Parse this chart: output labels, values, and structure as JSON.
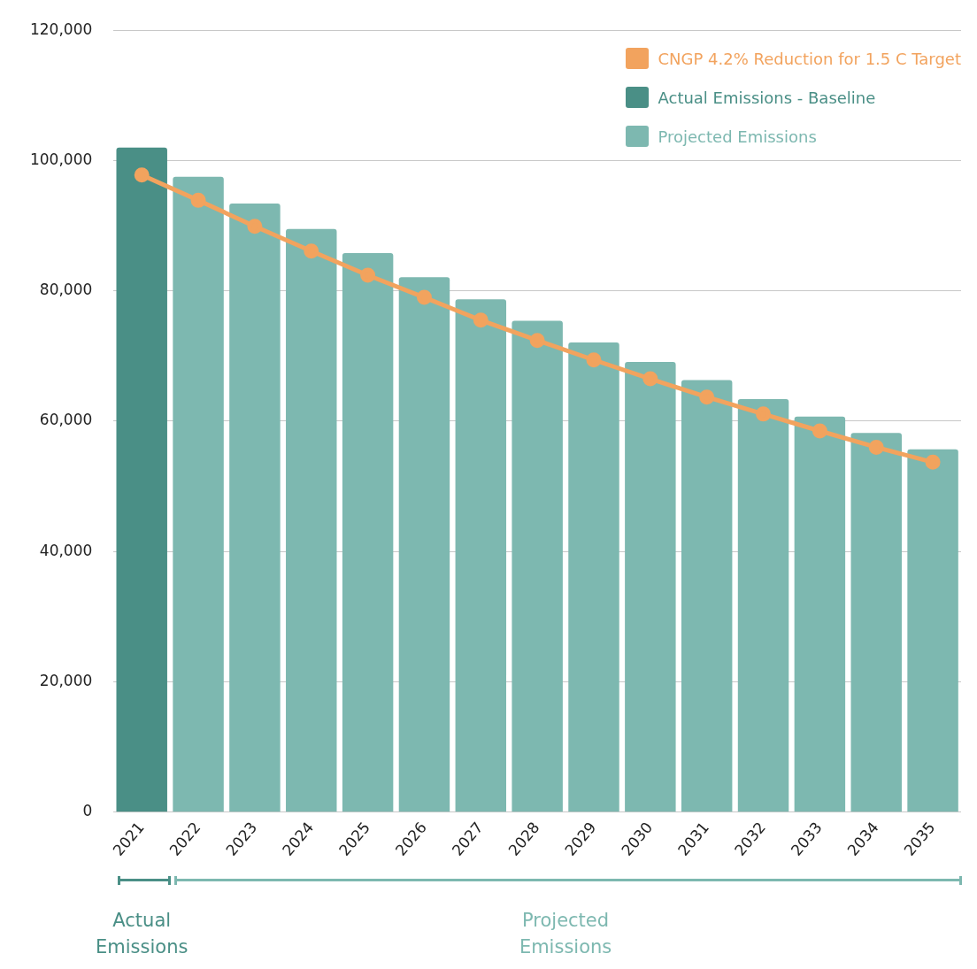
{
  "chart_data": {
    "type": "bar",
    "categories": [
      "2021",
      "2022",
      "2023",
      "2024",
      "2025",
      "2026",
      "2027",
      "2028",
      "2029",
      "2030",
      "2031",
      "2032",
      "2033",
      "2034",
      "2035"
    ],
    "series": [
      {
        "name": "CNGP 4.2% Reduction for 1.5 C Target",
        "type": "line",
        "color": "#f2a35e",
        "values": [
          97800,
          93900,
          89900,
          86100,
          82400,
          79000,
          75500,
          72400,
          69400,
          66500,
          63700,
          61100,
          58500,
          56000,
          53700
        ]
      },
      {
        "name": "Actual Emissions - Baseline",
        "color": "#4a8f86",
        "values": [
          102000,
          null,
          null,
          null,
          null,
          null,
          null,
          null,
          null,
          null,
          null,
          null,
          null,
          null,
          null
        ]
      },
      {
        "name": "Projected Emissions",
        "color": "#7db8b0",
        "values": [
          null,
          97500,
          93400,
          89500,
          85800,
          82100,
          78700,
          75400,
          72100,
          69100,
          66300,
          63400,
          60700,
          58200,
          55700
        ]
      }
    ],
    "ylim": [
      0,
      120000
    ],
    "yticks": [
      0,
      {
        "value": 20000,
        "label": "20,000"
      },
      {
        "value": 40000,
        "label": "40,000"
      },
      {
        "value": 60000,
        "label": "60,000"
      },
      {
        "value": 80000,
        "label": "80,000"
      },
      {
        "value": 100000,
        "label": "100,000"
      },
      {
        "value": 120000,
        "label": "120,000"
      }
    ],
    "grid": "y",
    "legend": "top right",
    "marker": "circle",
    "annotations": [
      "Actual Emissions",
      "Projected Emissions"
    ]
  }
}
